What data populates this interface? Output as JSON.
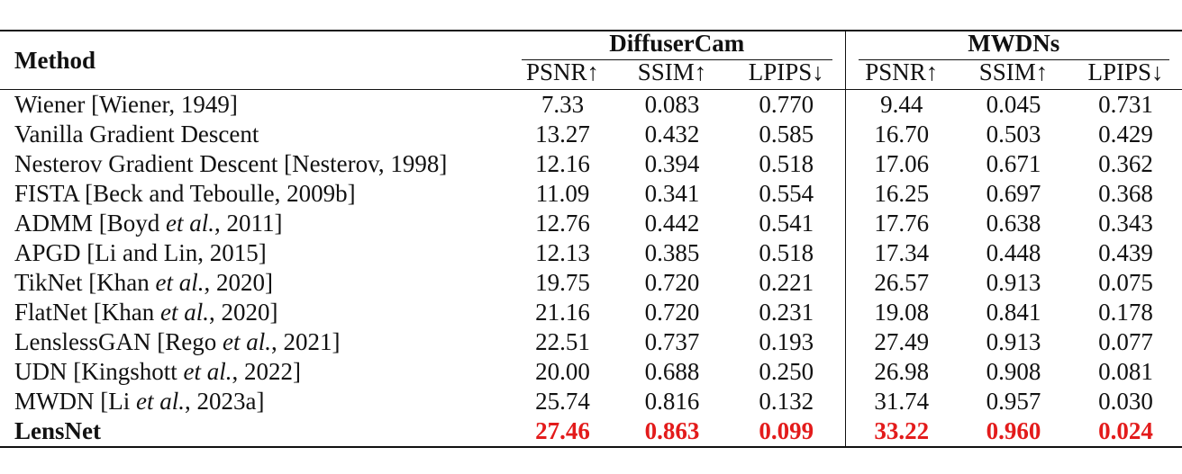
{
  "table": {
    "method_header": "Method",
    "groups": [
      "DiffuserCam",
      "MWDNs"
    ],
    "metrics": [
      "PSNR↑",
      "SSIM↑",
      "LPIPS↓",
      "PSNR↑",
      "SSIM↑",
      "LPIPS↓"
    ],
    "rows": [
      {
        "name": "Wiener [Wiener, 1949]",
        "pre": "Wiener [Wiener, 1949]",
        "etal": "",
        "post": "",
        "values": [
          "7.33",
          "0.083",
          "0.770",
          "9.44",
          "0.045",
          "0.731"
        ]
      },
      {
        "name": "Vanilla Gradient Descent",
        "pre": "Vanilla Gradient Descent",
        "etal": "",
        "post": "",
        "values": [
          "13.27",
          "0.432",
          "0.585",
          "16.70",
          "0.503",
          "0.429"
        ]
      },
      {
        "name": "Nesterov Gradient Descent [Nesterov, 1998]",
        "pre": "Nesterov Gradient Descent [Nesterov, 1998]",
        "etal": "",
        "post": "",
        "values": [
          "12.16",
          "0.394",
          "0.518",
          "17.06",
          "0.671",
          "0.362"
        ]
      },
      {
        "name": "FISTA [Beck and Teboulle, 2009b]",
        "pre": "FISTA [Beck and Teboulle, 2009b]",
        "etal": "",
        "post": "",
        "values": [
          "11.09",
          "0.341",
          "0.554",
          "16.25",
          "0.697",
          "0.368"
        ]
      },
      {
        "name": "ADMM [Boyd et al., 2011]",
        "pre": "ADMM [Boyd ",
        "etal": "et al.",
        "post": ", 2011]",
        "values": [
          "12.76",
          "0.442",
          "0.541",
          "17.76",
          "0.638",
          "0.343"
        ]
      },
      {
        "name": "APGD [Li and Lin, 2015]",
        "pre": "APGD [Li and Lin, 2015]",
        "etal": "",
        "post": "",
        "values": [
          "12.13",
          "0.385",
          "0.518",
          "17.34",
          "0.448",
          "0.439"
        ]
      },
      {
        "name": "TikNet [Khan et al., 2020]",
        "pre": "TikNet [Khan ",
        "etal": "et al.",
        "post": ", 2020]",
        "values": [
          "19.75",
          "0.720",
          "0.221",
          "26.57",
          "0.913",
          "0.075"
        ]
      },
      {
        "name": "FlatNet [Khan et al., 2020]",
        "pre": "FlatNet [Khan ",
        "etal": "et al.",
        "post": ", 2020]",
        "values": [
          "21.16",
          "0.720",
          "0.231",
          "19.08",
          "0.841",
          "0.178"
        ]
      },
      {
        "name": "LenslessGAN [Rego et al., 2021]",
        "pre": "LenslessGAN [Rego ",
        "etal": "et al.",
        "post": ", 2021]",
        "values": [
          "22.51",
          "0.737",
          "0.193",
          "27.49",
          "0.913",
          "0.077"
        ]
      },
      {
        "name": "UDN [Kingshott et al., 2022]",
        "pre": "UDN [Kingshott ",
        "etal": "et al.",
        "post": ", 2022]",
        "values": [
          "20.00",
          "0.688",
          "0.250",
          "26.98",
          "0.908",
          "0.081"
        ]
      },
      {
        "name": "MWDN [Li et al., 2023a]",
        "pre": "MWDN [Li ",
        "etal": "et al.",
        "post": ", 2023a]",
        "values": [
          "25.74",
          "0.816",
          "0.132",
          "31.74",
          "0.957",
          "0.030"
        ]
      },
      {
        "name": "LensNet",
        "pre": "LensNet",
        "etal": "",
        "post": "",
        "values": [
          "27.46",
          "0.863",
          "0.099",
          "33.22",
          "0.960",
          "0.024"
        ]
      }
    ],
    "highlight_color": "#e31b1b"
  }
}
